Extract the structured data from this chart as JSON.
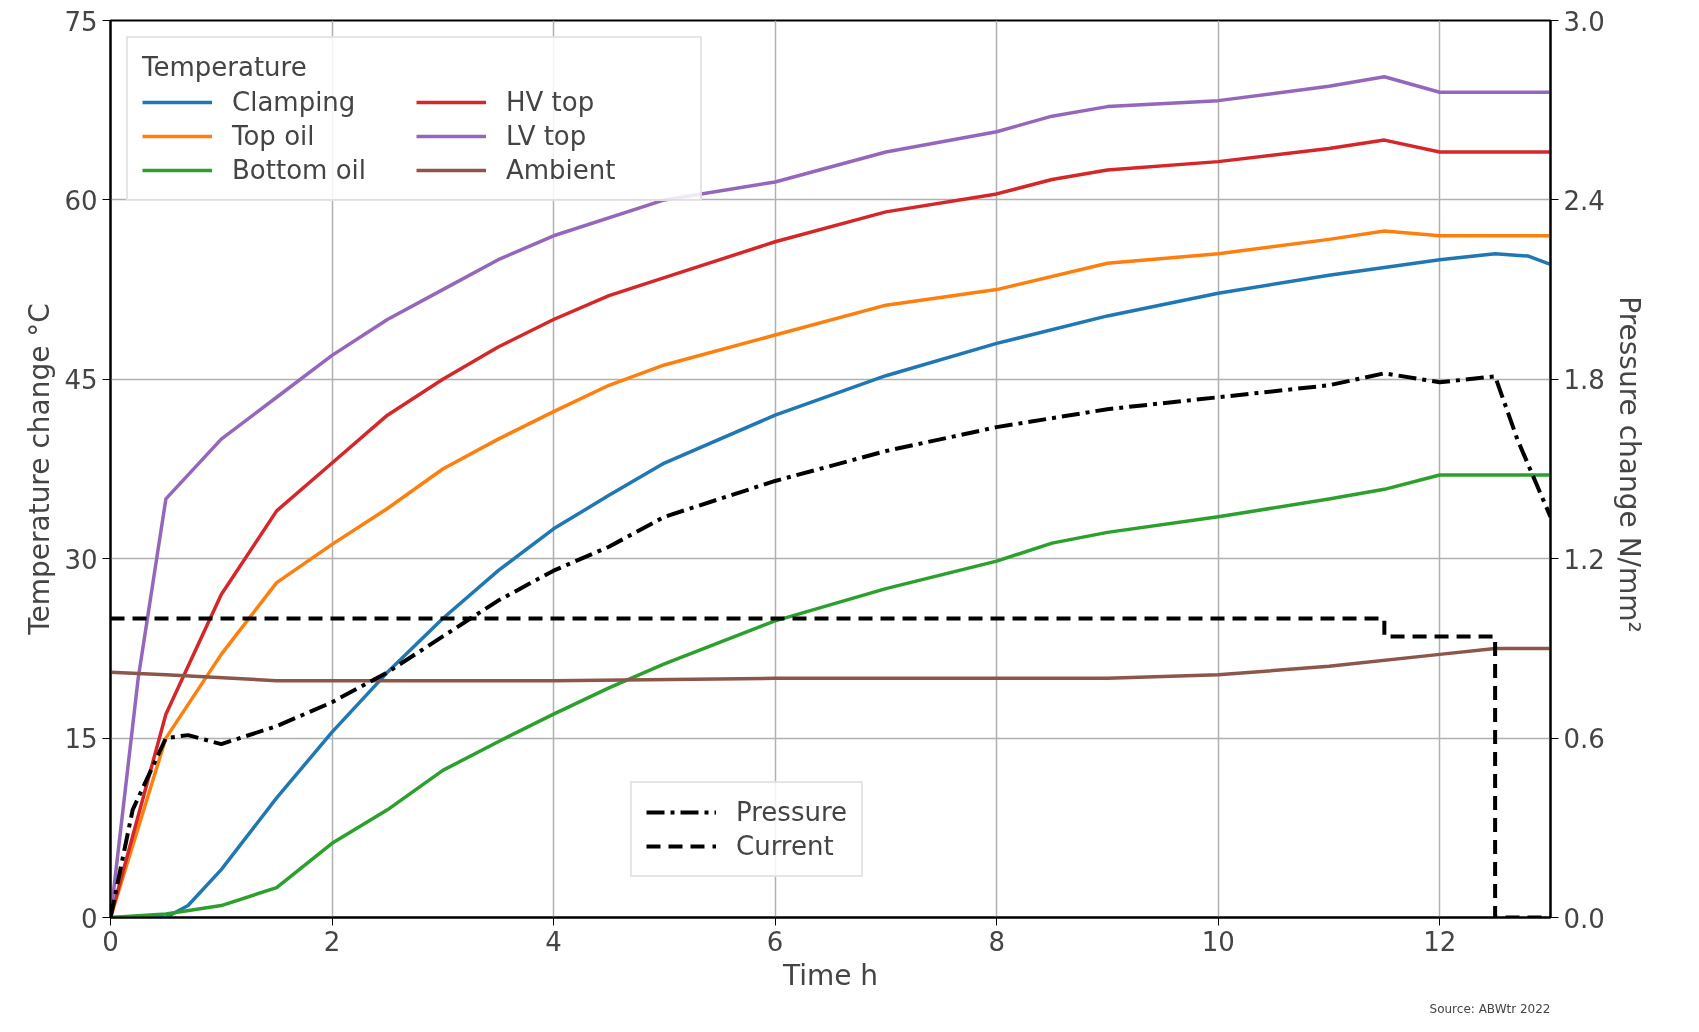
{
  "chart_data": {
    "type": "line",
    "xlabel": "Time h",
    "ylabel": "Temperature change °C",
    "y2label": "Pressure change  N/mm²",
    "legend_title": "Temperature",
    "xlim": [
      0,
      13
    ],
    "xticks": [
      0,
      2,
      4,
      6,
      8,
      10,
      12
    ],
    "ylim": [
      0,
      75
    ],
    "yticks": [
      0,
      15,
      30,
      45,
      60,
      75
    ],
    "y2lim": [
      0,
      3
    ],
    "y2ticks": [
      {
        "value": 0,
        "label": "0.0"
      },
      {
        "value": 0.6,
        "label": "0.6"
      },
      {
        "value": 1.2,
        "label": "1.2"
      },
      {
        "value": 1.8,
        "label": "1.8"
      },
      {
        "value": 2.4,
        "label": "2.4"
      },
      {
        "value": 3,
        "label": "3.0"
      }
    ],
    "grid": true,
    "legend": "left",
    "marker": "none",
    "line_style": "solid",
    "annotations": [
      "Source: ABWtr 2022"
    ],
    "series": [
      {
        "name": "Clamping",
        "color": "#1f77b4",
        "x": [
          0,
          0.5,
          0.7,
          1,
          1.5,
          2,
          2.5,
          3,
          3.5,
          4,
          4.5,
          5,
          6,
          7,
          8,
          9,
          10,
          11,
          12,
          12.5,
          12.8,
          13
        ],
        "values": [
          0,
          0,
          1,
          4,
          10,
          15.5,
          20.5,
          25,
          29,
          32.5,
          35.3,
          38,
          42,
          45.3,
          48,
          50.3,
          52.2,
          53.7,
          55,
          55.5,
          55.3,
          54.6
        ]
      },
      {
        "name": "Top oil",
        "color": "#ff7f0e",
        "x": [
          0,
          0.5,
          1,
          1.5,
          2,
          2.5,
          3,
          3.5,
          4,
          4.5,
          5,
          6,
          7,
          8,
          9,
          10,
          11,
          11.5,
          12,
          13
        ],
        "values": [
          0,
          15,
          22,
          28,
          31.2,
          34.2,
          37.5,
          40,
          42.3,
          44.5,
          46.2,
          48.7,
          51.2,
          52.5,
          54.7,
          55.5,
          56.7,
          57.4,
          57,
          57
        ]
      },
      {
        "name": "Bottom oil",
        "color": "#2ca02c",
        "x": [
          0,
          0.5,
          1,
          1.5,
          2,
          2.5,
          3,
          3.5,
          4,
          4.5,
          5,
          6,
          7,
          8,
          8.5,
          9,
          10,
          11,
          11.5,
          12,
          13
        ],
        "values": [
          0,
          0.3,
          1,
          2.5,
          6.2,
          9,
          12.3,
          14.7,
          17,
          19.2,
          21.2,
          24.8,
          27.5,
          29.8,
          31.3,
          32.2,
          33.5,
          35,
          35.8,
          37,
          37
        ]
      },
      {
        "name": "HV top",
        "color": "#d62728",
        "x": [
          0,
          0.5,
          1,
          1.5,
          2,
          2.5,
          3,
          3.5,
          4,
          4.5,
          5,
          6,
          7,
          8,
          8.5,
          9,
          10,
          11,
          11.5,
          12,
          13
        ],
        "values": [
          0,
          17,
          27,
          34,
          38,
          42,
          45,
          47.7,
          50,
          52,
          53.5,
          56.5,
          59,
          60.5,
          61.7,
          62.5,
          63.2,
          64.3,
          65,
          64,
          64
        ]
      },
      {
        "name": "LV top",
        "color": "#9467bd",
        "x": [
          0,
          0.25,
          0.5,
          1,
          1.5,
          2,
          2.5,
          3,
          3.5,
          4,
          5,
          6,
          7,
          8,
          8.5,
          9,
          10,
          11,
          11.5,
          12,
          13
        ],
        "values": [
          0,
          20,
          35,
          40,
          43.5,
          47,
          50,
          52.5,
          55,
          57,
          60,
          61.5,
          64,
          65.7,
          67,
          67.8,
          68.3,
          69.5,
          70.3,
          69,
          69
        ]
      },
      {
        "name": "Ambient",
        "color": "#8c564b",
        "x": [
          0,
          0.5,
          1.5,
          4,
          6,
          8,
          9,
          10,
          11,
          12,
          12.5,
          13
        ],
        "values": [
          20.5,
          20.3,
          19.8,
          19.8,
          20,
          20,
          20,
          20.3,
          21,
          22,
          22.5,
          22.5
        ]
      },
      {
        "name": "Pressure",
        "color": "#000000",
        "axis": "y2",
        "line_style": "dashdot",
        "x": [
          0,
          0.2,
          0.5,
          0.7,
          1,
          1.5,
          2,
          2.5,
          3,
          3.5,
          4,
          4.5,
          5,
          5.5,
          6,
          7,
          8,
          9,
          10,
          11,
          11.5,
          12,
          12.5,
          12.7,
          13
        ],
        "values": [
          0,
          0.36,
          0.6,
          0.61,
          0.58,
          0.64,
          0.72,
          0.82,
          0.94,
          1.06,
          1.16,
          1.24,
          1.34,
          1.4,
          1.46,
          1.56,
          1.64,
          1.7,
          1.74,
          1.78,
          1.82,
          1.79,
          1.81,
          1.6,
          1.34
        ]
      },
      {
        "name": "Current",
        "color": "#000000",
        "axis": "y2",
        "line_style": "dashed",
        "x": [
          0,
          11.5,
          11.5,
          12.5,
          12.5,
          13
        ],
        "values": [
          1.0,
          1.0,
          0.94,
          0.94,
          0,
          0
        ]
      }
    ]
  }
}
